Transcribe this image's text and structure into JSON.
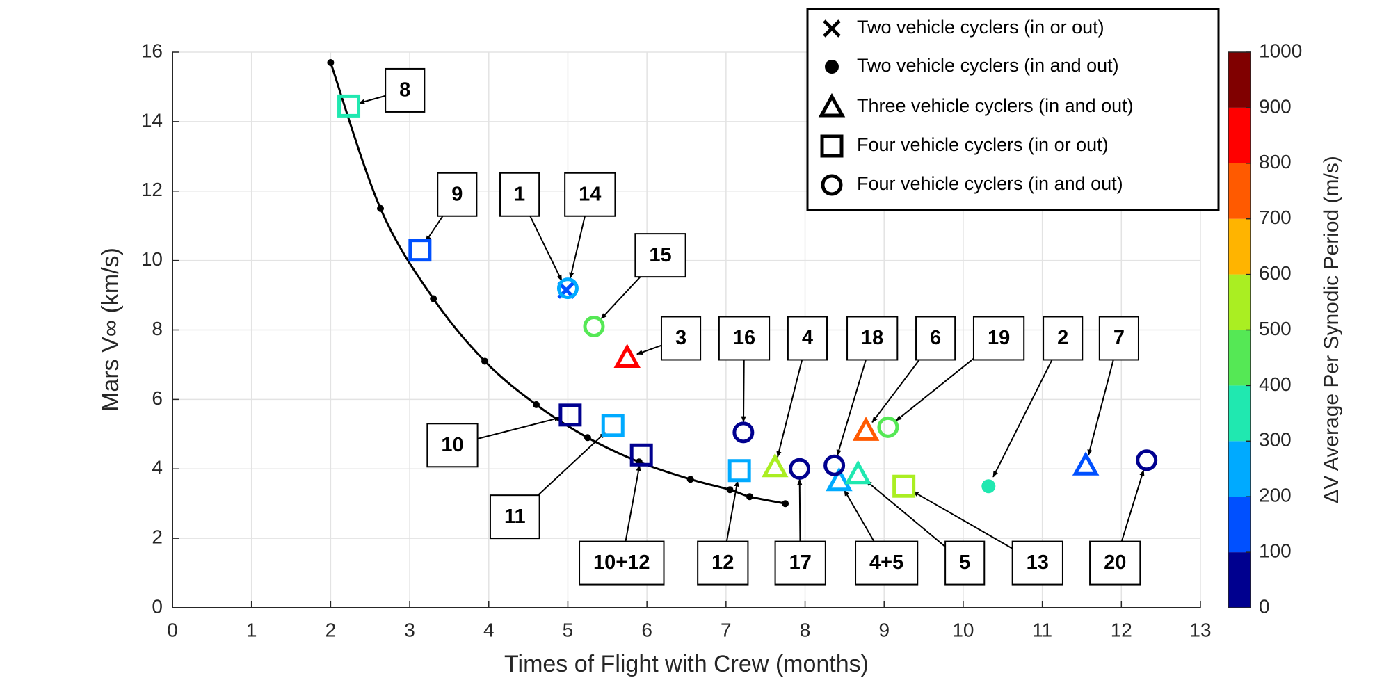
{
  "chart_data": {
    "type": "scatter",
    "xlabel": "Times of Flight with Crew (months)",
    "ylabel": "Mars V∞ (km/s)",
    "xlim": [
      0,
      13
    ],
    "xticks": [
      0,
      1,
      2,
      3,
      4,
      5,
      6,
      7,
      8,
      9,
      10,
      11,
      12,
      13
    ],
    "ylim": [
      0,
      16
    ],
    "yticks": [
      0,
      2,
      4,
      6,
      8,
      10,
      12,
      14,
      16
    ],
    "grid": true,
    "legend": "upper right",
    "curve": {
      "color": "#000000",
      "x": [
        2.0,
        2.63,
        3.3,
        3.95,
        4.6,
        5.25,
        5.9,
        6.55,
        7.05,
        7.3,
        7.75
      ],
      "y": [
        15.7,
        11.5,
        8.9,
        7.1,
        5.85,
        4.9,
        4.2,
        3.7,
        3.4,
        3.2,
        3.0
      ]
    },
    "series": [
      {
        "name": "Two vehicle cyclers (in or out)",
        "marker": "x",
        "x": [
          4.98
        ],
        "y": [
          9.15
        ],
        "dv": [
          150
        ],
        "labels": [
          "1"
        ]
      },
      {
        "name": "Two vehicle cyclers (in and out)",
        "marker": "dot",
        "x": [
          10.32
        ],
        "y": [
          3.5
        ],
        "dv": [
          350
        ],
        "labels": [
          "2"
        ]
      },
      {
        "name": "Three vehicle cyclers (in and out)",
        "marker": "triangle",
        "x": [
          5.75,
          7.62,
          8.77,
          11.55,
          8.43,
          8.67
        ],
        "y": [
          7.2,
          4.05,
          5.1,
          4.1,
          3.65,
          3.85
        ],
        "dv": [
          850,
          550,
          750,
          150,
          250,
          350
        ],
        "labels": [
          "3",
          "4",
          "6",
          "7",
          "4+5",
          "5"
        ]
      },
      {
        "name": "Four vehicle cyclers (in or out)",
        "marker": "square",
        "x": [
          2.23,
          3.13,
          5.03,
          5.57,
          5.93,
          7.17,
          9.25
        ],
        "y": [
          14.45,
          10.3,
          5.55,
          5.25,
          4.4,
          3.95,
          3.5
        ],
        "dv": [
          350,
          150,
          50,
          250,
          50,
          250,
          550
        ],
        "labels": [
          "8",
          "9",
          "10",
          "11",
          "10+12",
          "12",
          "13"
        ]
      },
      {
        "name": "Four vehicle cyclers (in and out)",
        "marker": "circle",
        "x": [
          5.0,
          5.33,
          7.22,
          7.93,
          8.37,
          9.05,
          12.32
        ],
        "y": [
          9.2,
          8.1,
          5.05,
          4.0,
          4.1,
          5.2,
          4.25
        ],
        "dv": [
          250,
          450,
          50,
          50,
          50,
          450,
          50
        ],
        "labels": [
          "14",
          "15",
          "16",
          "17",
          "18",
          "19",
          "20"
        ]
      }
    ],
    "colorbar": {
      "label": "ΔV Average Per Synodic Period (m/s)",
      "lim": [
        0,
        1000
      ],
      "ticks": [
        0,
        100,
        200,
        300,
        400,
        500,
        600,
        700,
        800,
        900,
        1000
      ],
      "colors": [
        "#00008f",
        "#0050ff",
        "#00aaff",
        "#20e8b0",
        "#55e855",
        "#aaee22",
        "#ffb400",
        "#ff5a00",
        "#ff0000",
        "#800000"
      ]
    }
  }
}
